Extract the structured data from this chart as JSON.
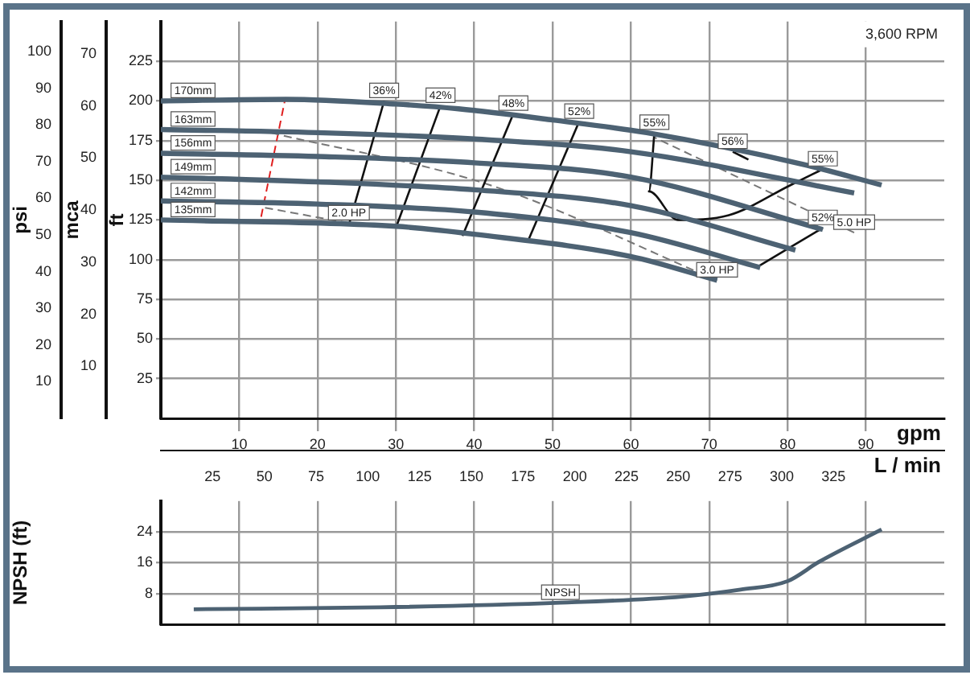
{
  "chart_data": [
    {
      "type": "line",
      "xlabel": "gpm",
      "x2label": "L / min",
      "ylabel": "ft",
      "y2label": "psi",
      "y3label": "mca",
      "xlim": [
        0,
        100
      ],
      "xticks": [
        10,
        20,
        30,
        40,
        50,
        60,
        70,
        80,
        90
      ],
      "x2lim": [
        0,
        378.5
      ],
      "x2ticks": [
        25,
        50,
        75,
        100,
        125,
        150,
        175,
        200,
        225,
        250,
        275,
        300,
        325
      ],
      "ylim": [
        0,
        250
      ],
      "yticks": [
        25,
        50,
        75,
        100,
        125,
        150,
        175,
        200,
        225
      ],
      "y2lim": [
        0,
        108.2
      ],
      "y2ticks": [
        10,
        20,
        30,
        40,
        50,
        60,
        70,
        80,
        90,
        100
      ],
      "y3lim": [
        0,
        76.2
      ],
      "y3ticks": [
        10,
        20,
        30,
        40,
        50,
        60,
        70
      ],
      "grid": true,
      "legend": false,
      "annotations": [
        "3,600 RPM",
        {
          "text": "55%",
          "x": 84.5,
          "y": 157
        }
      ],
      "series": [
        {
          "name": "170mm",
          "color": "#4d6273",
          "x": [
            0,
            16,
            30,
            38,
            50,
            62,
            82,
            92
          ],
          "values": [
            200,
            201,
            198,
            195,
            188,
            180,
            160,
            147
          ]
        },
        {
          "name": "163mm",
          "color": "#4d6273",
          "x": [
            0,
            20,
            40,
            60,
            88.5
          ],
          "values": [
            182,
            180,
            176,
            168,
            142
          ]
        },
        {
          "name": "156mm",
          "color": "#4d6273",
          "x": [
            0,
            20,
            40,
            60,
            84.5
          ],
          "values": [
            167,
            165,
            161,
            152,
            119
          ]
        },
        {
          "name": "149mm",
          "color": "#4d6273",
          "x": [
            0,
            20,
            40,
            60,
            81
          ],
          "values": [
            152,
            149,
            144,
            134,
            106
          ]
        },
        {
          "name": "142mm",
          "color": "#4d6273",
          "x": [
            0,
            20,
            40,
            60,
            76.5
          ],
          "values": [
            137,
            135,
            130,
            117,
            95
          ]
        },
        {
          "name": "135mm",
          "color": "#4d6273",
          "x": [
            0,
            30,
            40,
            60,
            71
          ],
          "values": [
            125,
            121,
            116,
            102,
            87
          ]
        },
        {
          "name": "36%",
          "color": "#111111",
          "x": [
            28.5,
            24
          ],
          "values": [
            200,
            122
          ]
        },
        {
          "name": "42%",
          "color": "#111111",
          "x": [
            35.7,
            30
          ],
          "values": [
            197,
            120
          ]
        },
        {
          "name": "48%",
          "color": "#111111",
          "x": [
            45,
            38.5
          ],
          "values": [
            192,
            115
          ]
        },
        {
          "name": "52%",
          "color": "#111111",
          "x": [
            53.4,
            46.8
          ],
          "values": [
            187,
            111
          ]
        },
        {
          "name": "55%",
          "color": "#111111",
          "x": [
            63,
            62.3,
            66,
            72.5,
            80.4,
            84.5
          ],
          "values": [
            180,
            143,
            125,
            128,
            147,
            157
          ]
        },
        {
          "name": "56%",
          "color": "#111111",
          "x": [
            73,
            75
          ],
          "values": [
            168,
            163
          ]
        },
        {
          "name": "52%",
          "color": "#111111",
          "x": [
            84.5,
            76
          ],
          "values": [
            120,
            95
          ]
        },
        {
          "name": "2.0 HP",
          "color": "#777777",
          "line_style": "dashed",
          "x": [
            24,
            13
          ],
          "values": [
            123,
            133
          ]
        },
        {
          "name": "3.0 HP",
          "color": "#777777",
          "line_style": "dashed",
          "x": [
            71,
            42,
            14
          ],
          "values": [
            87,
            147,
            180
          ]
        },
        {
          "name": "5.0 HP",
          "color": "#777777",
          "line_style": "dashed",
          "x": [
            88.5,
            63
          ],
          "values": [
            117,
            177
          ]
        },
        {
          "color": "#e02020",
          "line_style": "dashed",
          "x": [
            12.8,
            15.9
          ],
          "values": [
            127,
            202
          ]
        }
      ]
    },
    {
      "type": "line",
      "ylabel": "NPSH (ft)",
      "xlim": [
        0,
        100
      ],
      "xticks": [
        10,
        20,
        30,
        40,
        50,
        60,
        70,
        80,
        90
      ],
      "ylim": [
        0,
        32
      ],
      "yticks": [
        8,
        16,
        24
      ],
      "grid": true,
      "legend": false,
      "tick_labels": "y",
      "series": [
        {
          "name": "NPSH",
          "color": "#4d6273",
          "x": [
            4.2,
            28,
            51,
            66.5,
            74,
            80,
            84,
            92
          ],
          "values": [
            3.9,
            4.4,
            5.6,
            7.2,
            9,
            11.2,
            16.2,
            24.6
          ]
        }
      ]
    }
  ]
}
